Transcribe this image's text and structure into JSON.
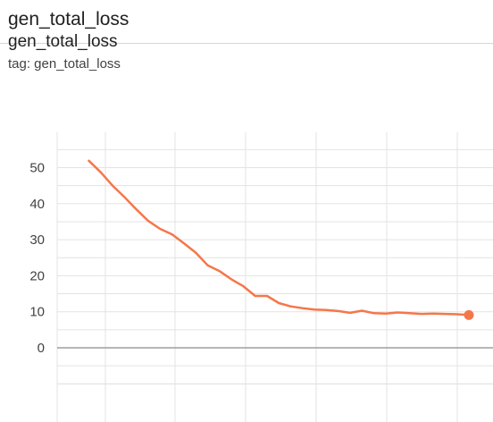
{
  "header": {
    "title": "gen_total_loss"
  },
  "card": {
    "title": "gen_total_loss",
    "tag": "tag: gen_total_loss"
  },
  "colors": {
    "series": "#f4774a",
    "grid": "#e3e3e3",
    "zero_line": "#9e9e9e",
    "text": "#212121"
  },
  "chart_data": {
    "type": "line",
    "title": "gen_total_loss",
    "ylim": [
      -12,
      60
    ],
    "yticks": [
      0,
      10,
      20,
      30,
      40,
      50
    ],
    "xlim": [
      0,
      18
    ],
    "grid": true,
    "series": [
      {
        "x": [
          1.0,
          1.5,
          2.0,
          2.5,
          3.0,
          3.5,
          4.0,
          4.5,
          5.0,
          5.5,
          6.0,
          6.5,
          7.0,
          7.5,
          8.0,
          8.5,
          9.0,
          9.5,
          10.0,
          10.5,
          11.0,
          11.5,
          12.0,
          12.5,
          13.0,
          13.5,
          14.0,
          14.5,
          15.0,
          15.5,
          16.0,
          16.5,
          17.0
        ],
        "y": [
          51.9,
          48.7,
          45.0,
          41.8,
          38.4,
          35.2,
          33.0,
          31.5,
          29.0,
          26.4,
          22.9,
          21.3,
          19.0,
          17.1,
          14.4,
          14.4,
          12.4,
          11.5,
          11.0,
          10.6,
          10.5,
          10.2,
          9.7,
          10.3,
          9.6,
          9.5,
          9.8,
          9.6,
          9.4,
          9.5,
          9.4,
          9.3,
          9.1
        ]
      }
    ]
  }
}
